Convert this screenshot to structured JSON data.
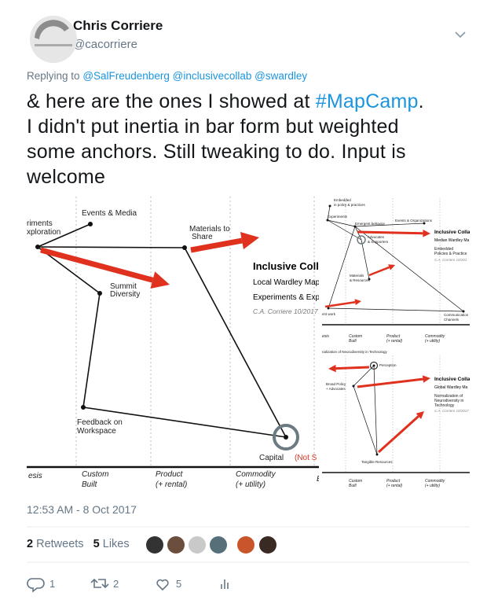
{
  "header": {
    "name": "Chris Corriere",
    "handle": "@cacorriere"
  },
  "reply": {
    "prefix": "Replying to",
    "mentions": [
      "@SalFreudenberg",
      "@inclusivecollab",
      "@swardley"
    ]
  },
  "tweet": {
    "line1_pre": "& here are the ones I showed at ",
    "hashtag": "#MapCamp",
    "line1_post": ".",
    "lines": [
      "I didn't put inertia in bar form but weighted",
      "some anchors. Still tweaking to do. Input is",
      "welcome"
    ]
  },
  "timestamp": "12:53 AM - 8 Oct 2017",
  "stats": {
    "retweets": {
      "count": 2,
      "label": "Retweets"
    },
    "likes": {
      "count": 5,
      "label": "Likes"
    }
  },
  "actions": {
    "replies": 1,
    "retweets": 2,
    "likes": 5
  },
  "map_main": {
    "labels": [
      "Events & Media",
      "riments",
      "xploration",
      "Materials to",
      "Share",
      "Summit",
      "Diversity",
      "Feedback on",
      "Workspace",
      "Capital",
      "(Not S"
    ],
    "title": "Inclusive Colla",
    "subtitle": "Local Wardley Map",
    "note": "Experiments & Explo",
    "author": "C.A. Corriere 10/2017",
    "axis": [
      "esis",
      "Custom",
      "Built",
      "Product",
      "(+ rental)",
      "Commodity",
      "(+ utility)",
      "E"
    ]
  },
  "map_median": {
    "labels": [
      "Embedded",
      "in policy & practices",
      "Experiments",
      "Emergent behavior",
      "Events & Organizations",
      "Advocates",
      "& Supporters",
      "Materials",
      "& Resources",
      "ent work",
      "Communication",
      "Channels"
    ],
    "title": "Inclusive Colla",
    "subtitle": "Median Wardley Ma",
    "note": [
      "Embedded",
      "Policies & Practice"
    ],
    "author": "C.A. Corriere 10/201",
    "axis": [
      "esis",
      "Custom",
      "Built",
      "Product",
      "(+ rental)",
      "Commodity",
      "(+ utility)"
    ]
  },
  "map_global": {
    "labels": [
      "nalization of Neurodiversity in Technology",
      "Perception",
      "Broad Policy",
      "+ Advocates",
      "Tangible Resources"
    ],
    "title": "Inclusive Colla",
    "subtitle": "Global Wardley Ma",
    "note": [
      "Normalization of",
      "Neurodiversity in",
      "Technology"
    ],
    "author": "C.A. Corriere 10/2017",
    "axis": [
      "Custom",
      "Built",
      "Product",
      "(+ rental)",
      "Commodity",
      "(+ utility)"
    ]
  }
}
